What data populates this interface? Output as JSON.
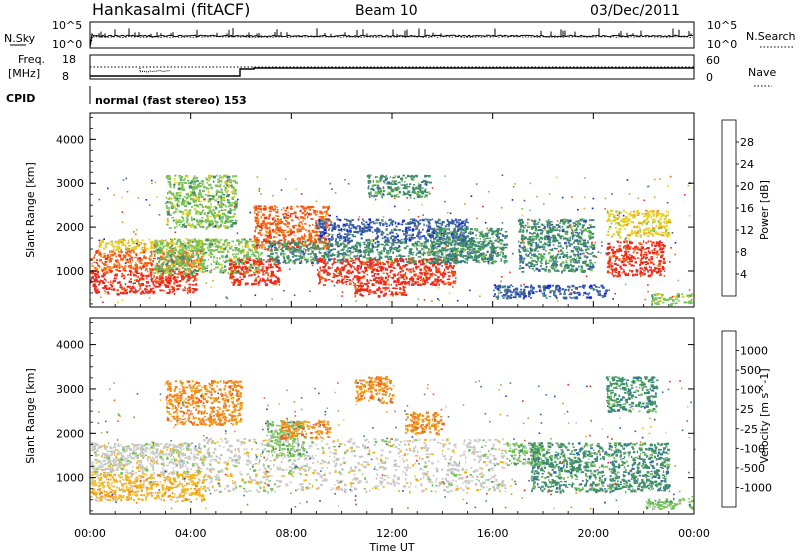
{
  "header": {
    "title": "Hankasalmi (fitACF)",
    "beam": "Beam 10",
    "date": "03/Dec/2011"
  },
  "noise_panel": {
    "left_label": "N.Sky",
    "right_label": "N.Search",
    "left_ticks": [
      "10^5",
      "10^0"
    ],
    "right_ticks": [
      "10^5",
      "10^0"
    ]
  },
  "freq_panel": {
    "left_label_1": "Freq.",
    "left_label_2": "[MHz]",
    "left_ticks": [
      "18",
      "8"
    ],
    "right_label": "Nave",
    "right_ticks": [
      "60",
      "0"
    ]
  },
  "cpid": {
    "label": "CPID",
    "text": "normal (fast stereo) 153"
  },
  "axes": {
    "ylabel": "Slant Range [km]",
    "yticks": [
      "1000",
      "2000",
      "3000",
      "4000"
    ],
    "xticks": [
      "00:00",
      "04:00",
      "08:00",
      "12:00",
      "16:00",
      "20:00",
      "00:00"
    ],
    "xlabel": "Time UT"
  },
  "colors": {
    "axis": "#000000",
    "ground": "#bdbdbd"
  },
  "power_bar": {
    "title": "Power [dB]",
    "ticks": [
      "4",
      "8",
      "12",
      "16",
      "20",
      "24",
      "28"
    ],
    "colors": [
      "#0b1ee6",
      "#3a5aa8",
      "#3f8c6a",
      "#77c257",
      "#e8d024",
      "#f29a14",
      "#f26414",
      "#ee2b1b"
    ]
  },
  "velocity_bar": {
    "title": "Velocity [m s^-1]",
    "ticks": [
      "1000",
      "500",
      "100",
      "25",
      "-25",
      "-100",
      "-500",
      "-1000"
    ],
    "colors": [
      "#1f3fd1",
      "#2f6ca8",
      "#3f8f69",
      "#76c255",
      "#c8c8c8",
      "#f2b41c",
      "#f28a1c",
      "#f2601c",
      "#e82b1b"
    ]
  },
  "chart_data": [
    {
      "type": "heatmap",
      "name": "Power",
      "x_range_hours": [
        0,
        24
      ],
      "y_range_km": [
        180,
        4600
      ],
      "regions": [
        {
          "t0": 0.0,
          "t1": 4.2,
          "r0": 500,
          "r1": 1050,
          "c": 7
        },
        {
          "t0": 0.0,
          "t1": 4.5,
          "r0": 1050,
          "r1": 1500,
          "c": 6
        },
        {
          "t0": 0.3,
          "t1": 4.5,
          "r0": 1500,
          "r1": 1750,
          "c": 4
        },
        {
          "t0": 2.5,
          "t1": 6.8,
          "r0": 950,
          "r1": 1750,
          "c": 3
        },
        {
          "t0": 3.0,
          "t1": 5.8,
          "r0": 2000,
          "r1": 3200,
          "c": 3
        },
        {
          "t0": 5.5,
          "t1": 7.5,
          "r0": 700,
          "r1": 1300,
          "c": 7
        },
        {
          "t0": 6.5,
          "t1": 9.5,
          "r0": 1500,
          "r1": 2500,
          "c": 6
        },
        {
          "t0": 7.0,
          "t1": 16.0,
          "r0": 1200,
          "r1": 1700,
          "c": 2
        },
        {
          "t0": 9.0,
          "t1": 14.5,
          "r0": 700,
          "r1": 1300,
          "c": 7
        },
        {
          "t0": 9.0,
          "t1": 15.0,
          "r0": 1700,
          "r1": 2200,
          "c": 1
        },
        {
          "t0": 10.5,
          "t1": 12.5,
          "r0": 450,
          "r1": 700,
          "c": 7
        },
        {
          "t0": 11.0,
          "t1": 13.5,
          "r0": 2700,
          "r1": 3200,
          "c": 2
        },
        {
          "t0": 13.5,
          "t1": 16.5,
          "r0": 1200,
          "r1": 2000,
          "c": 2
        },
        {
          "t0": 16.0,
          "t1": 20.5,
          "r0": 400,
          "r1": 700,
          "c": 1
        },
        {
          "t0": 17.0,
          "t1": 20.0,
          "r0": 1000,
          "r1": 2200,
          "c": 2
        },
        {
          "t0": 20.5,
          "t1": 22.8,
          "r0": 900,
          "r1": 1700,
          "c": 7
        },
        {
          "t0": 20.5,
          "t1": 23.0,
          "r0": 1800,
          "r1": 2400,
          "c": 4
        },
        {
          "t0": 22.3,
          "t1": 23.9,
          "r0": 260,
          "r1": 500,
          "c": 3
        }
      ]
    },
    {
      "type": "heatmap",
      "name": "Velocity",
      "x_range_hours": [
        0,
        24
      ],
      "y_range_km": [
        180,
        4600
      ],
      "regions": [
        {
          "t0": 0.0,
          "t1": 4.5,
          "r0": 500,
          "r1": 1100,
          "c": 5
        },
        {
          "t0": 0.0,
          "t1": 4.5,
          "r0": 1100,
          "r1": 1800,
          "c": 4
        },
        {
          "t0": 3.0,
          "t1": 6.0,
          "r0": 2200,
          "r1": 3200,
          "c": 6
        },
        {
          "t0": 4.5,
          "t1": 16.5,
          "r0": 700,
          "r1": 1900,
          "c": 4
        },
        {
          "t0": 7.0,
          "t1": 8.5,
          "r0": 1500,
          "r1": 2300,
          "c": 3
        },
        {
          "t0": 7.5,
          "t1": 9.5,
          "r0": 1900,
          "r1": 2300,
          "c": 6
        },
        {
          "t0": 10.5,
          "t1": 12.0,
          "r0": 2700,
          "r1": 3300,
          "c": 6
        },
        {
          "t0": 12.5,
          "t1": 14.0,
          "r0": 2000,
          "r1": 2500,
          "c": 6
        },
        {
          "t0": 16.5,
          "t1": 18.0,
          "r0": 1300,
          "r1": 1800,
          "c": 3
        },
        {
          "t0": 17.5,
          "t1": 23.0,
          "r0": 700,
          "r1": 1800,
          "c": 2
        },
        {
          "t0": 20.5,
          "t1": 22.5,
          "r0": 2500,
          "r1": 3300,
          "c": 2
        },
        {
          "t0": 22.0,
          "t1": 23.9,
          "r0": 300,
          "r1": 560,
          "c": 3
        }
      ]
    }
  ]
}
